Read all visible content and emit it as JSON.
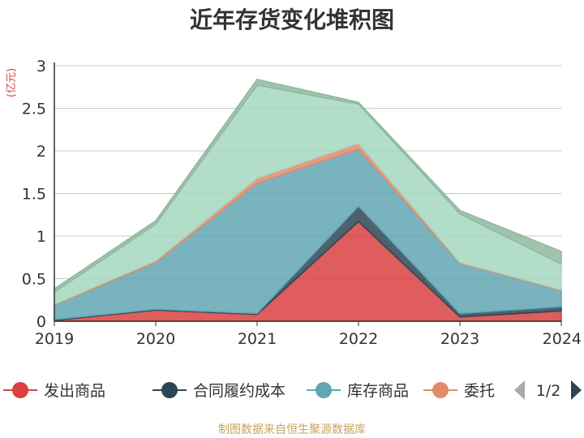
{
  "chart_data": {
    "type": "area",
    "stacked": true,
    "title": "近年存货变化堆积图",
    "unit_label": "(亿元)",
    "categories": [
      "2019",
      "2020",
      "2021",
      "2022",
      "2023",
      "2024"
    ],
    "ylim": [
      0,
      3
    ],
    "yticks": [
      "0",
      "0.5",
      "1",
      "1.5",
      "2",
      "2.5",
      "3"
    ],
    "grid": true,
    "series": [
      {
        "name": "发出商品",
        "color": "#d9413f",
        "values": [
          0.01,
          0.13,
          0.08,
          1.17,
          0.05,
          0.12
        ]
      },
      {
        "name": "合同履约成本",
        "color": "#2d4655",
        "values": [
          0.01,
          0.01,
          0.01,
          0.18,
          0.04,
          0.05
        ]
      },
      {
        "name": "库存商品",
        "color": "#62a6b3",
        "values": [
          0.17,
          0.55,
          1.53,
          0.67,
          0.59,
          0.19
        ]
      },
      {
        "name": "委托",
        "color": "#e08b6c",
        "values": [
          0.01,
          0.02,
          0.06,
          0.07,
          0.01,
          0.01
        ]
      },
      {
        "name": "",
        "color": "#a5d8c0",
        "values": [
          0.14,
          0.43,
          1.09,
          0.46,
          0.57,
          0.3
        ]
      },
      {
        "name": "",
        "color": "#8fb8a0",
        "values": [
          0.04,
          0.04,
          0.07,
          0.02,
          0.04,
          0.15
        ]
      }
    ],
    "legend": {
      "position": "bottom",
      "visible_items": [
        "发出商品",
        "合同履约成本",
        "库存商品",
        "委托"
      ],
      "page_indicator": "1/2"
    }
  },
  "source": "制图数据来自恒生聚源数据库"
}
